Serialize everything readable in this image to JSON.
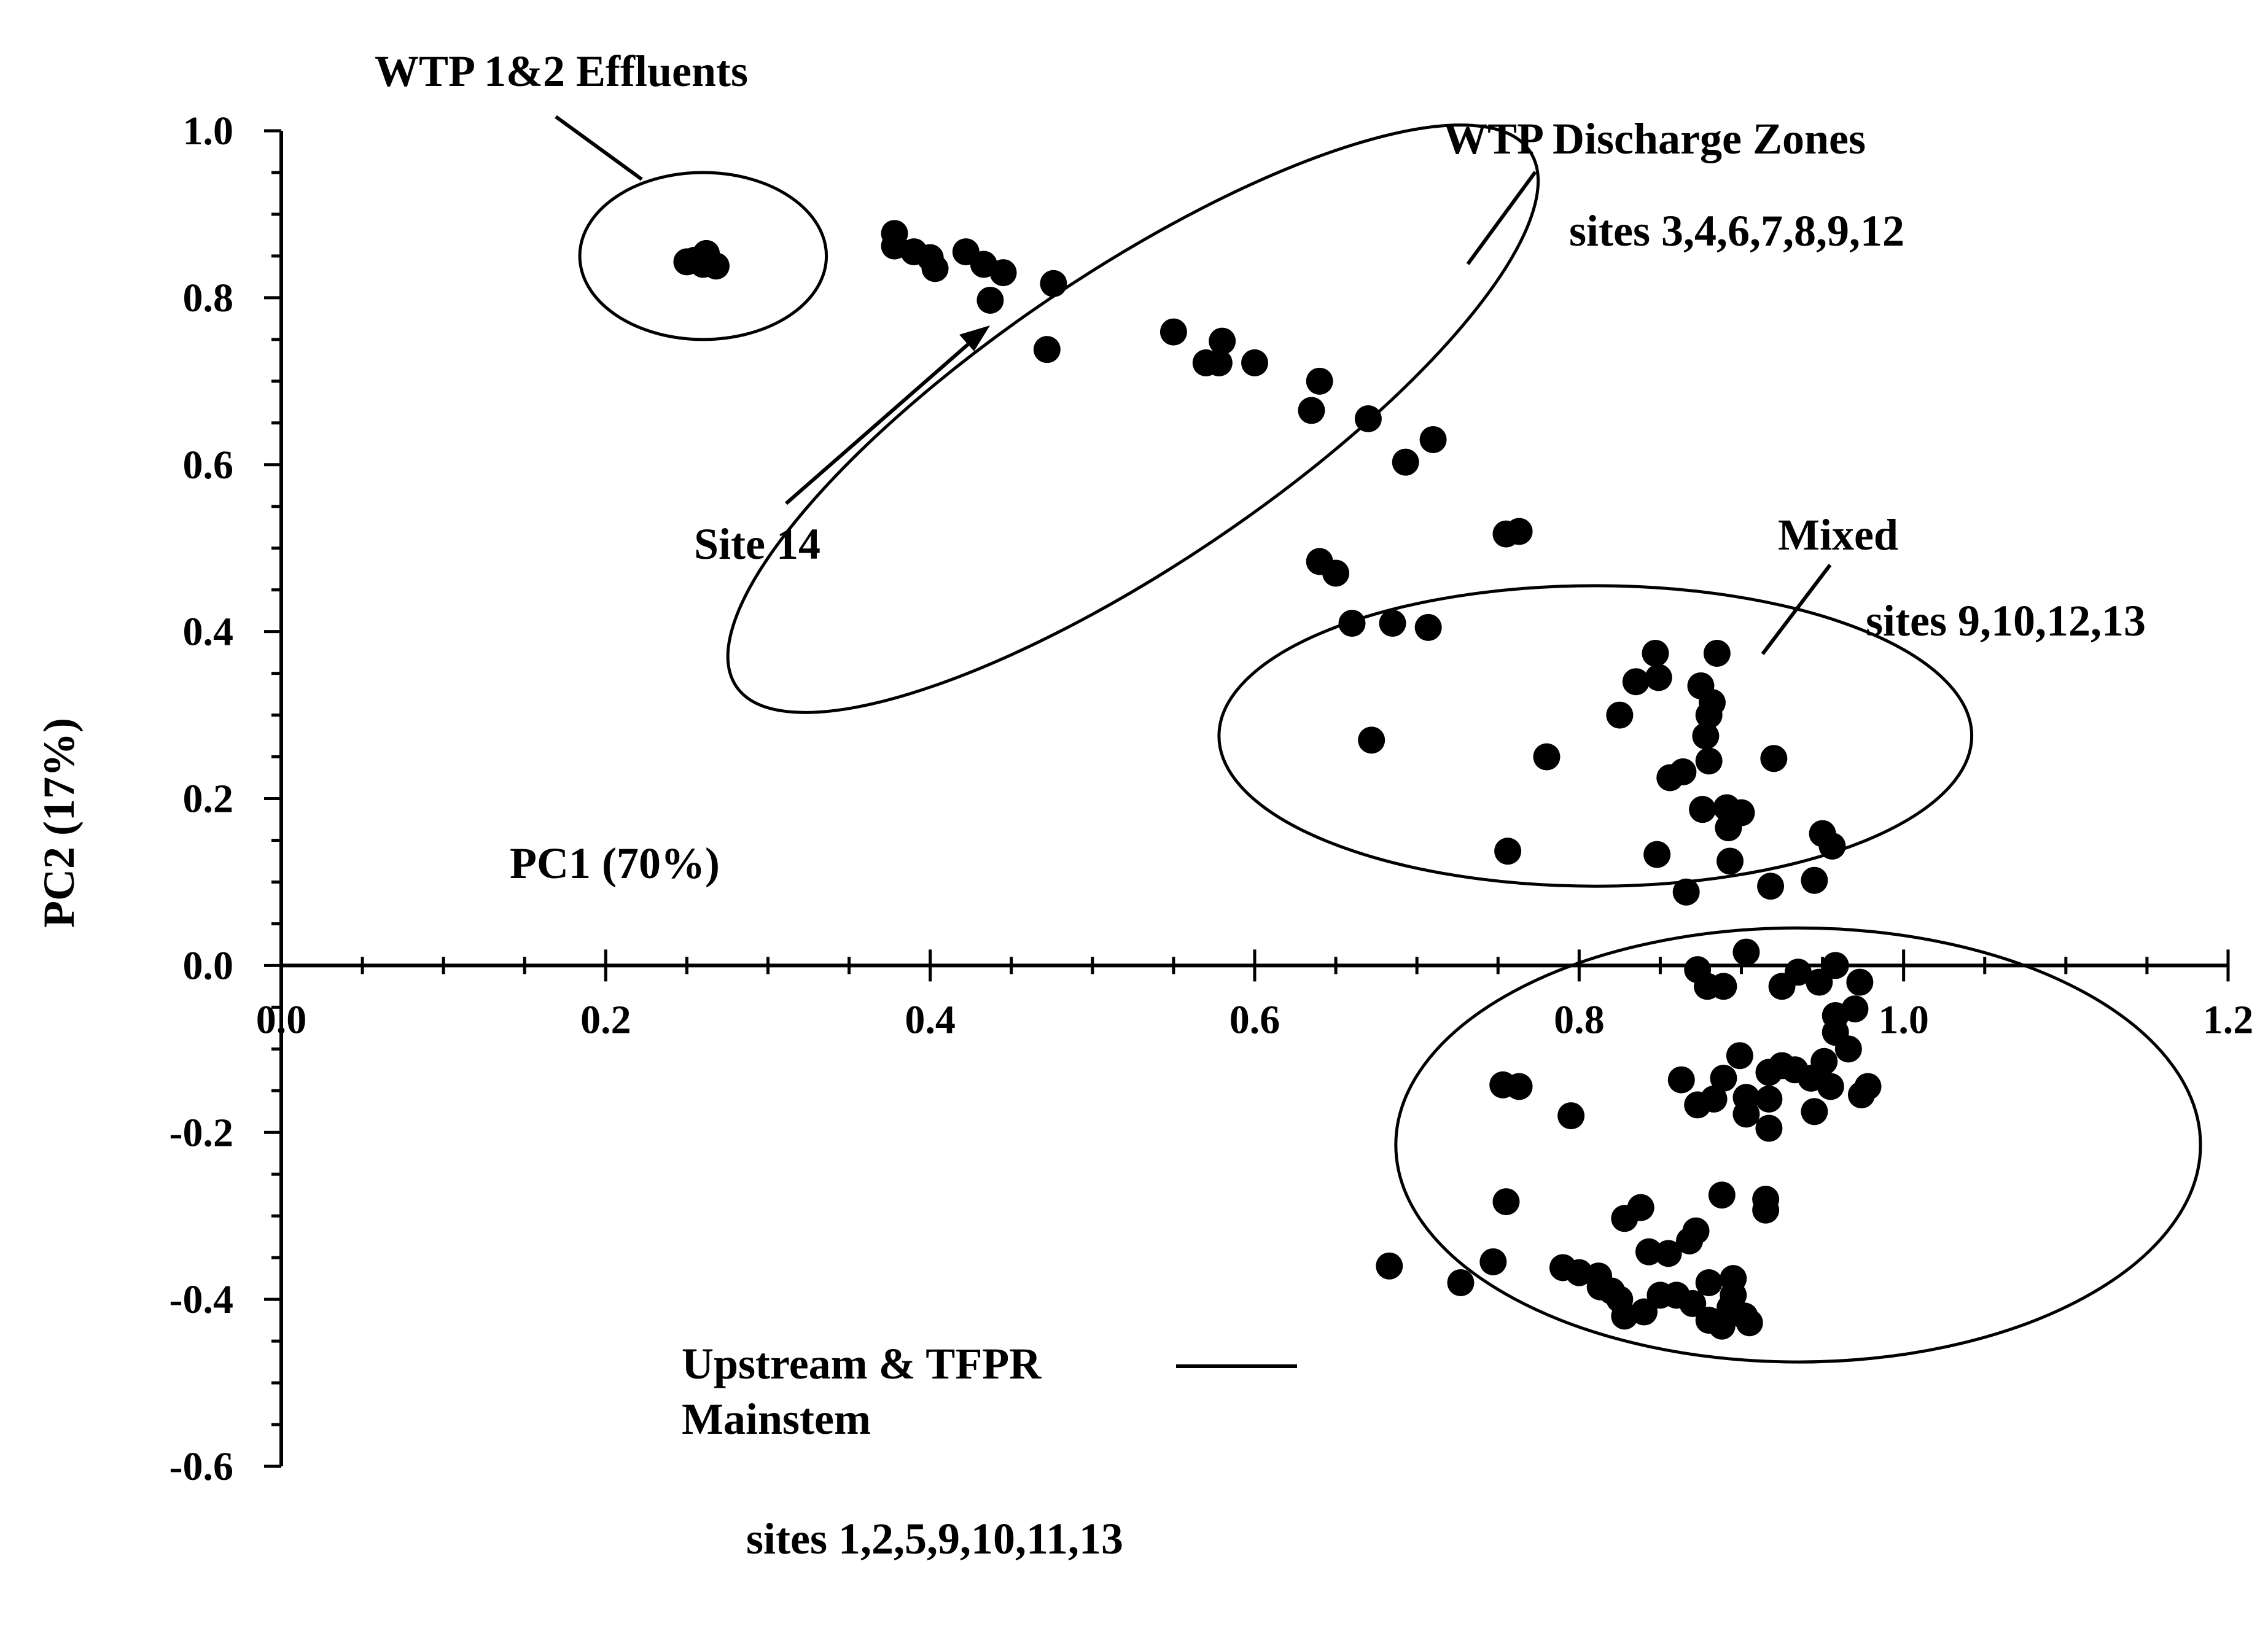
{
  "chart_data": {
    "type": "scatter",
    "title": "",
    "xlabel": "PC1 (70%)",
    "ylabel": "PC2 (17%)",
    "xlim": [
      0.0,
      1.2
    ],
    "ylim": [
      -0.6,
      1.0
    ],
    "x_ticks": [
      "0.0",
      "0.2",
      "0.4",
      "0.6",
      "0.8",
      "1.0",
      "1.2"
    ],
    "y_ticks": [
      "1.0",
      "0.8",
      "0.6",
      "0.4",
      "0.2",
      "0.0",
      "-0.2",
      "-0.4",
      "-0.6"
    ],
    "grid": false,
    "marker_color": "#000000",
    "groups": [
      {
        "name": "WTP 1&2 Effluents",
        "sites": "",
        "center": [
          0.26,
          0.85
        ],
        "radius_x": 0.076,
        "radius_y": 0.1,
        "angle": 0,
        "points": [
          [
            0.255,
            0.845
          ],
          [
            0.26,
            0.84
          ],
          [
            0.268,
            0.838
          ],
          [
            0.262,
            0.853
          ],
          [
            0.25,
            0.843
          ]
        ]
      },
      {
        "name": "WTP Discharge Zones",
        "sites": "sites 3,4,6,7,8,9,12",
        "center": [
          0.525,
          0.655
        ],
        "radius_x": 0.295,
        "radius_y": 0.175,
        "angle": -34,
        "points": [
          [
            0.378,
            0.877
          ],
          [
            0.378,
            0.862
          ],
          [
            0.39,
            0.855
          ],
          [
            0.4,
            0.848
          ],
          [
            0.403,
            0.835
          ],
          [
            0.422,
            0.855
          ],
          [
            0.433,
            0.84
          ],
          [
            0.445,
            0.83
          ],
          [
            0.476,
            0.817
          ],
          [
            0.437,
            0.797
          ],
          [
            0.472,
            0.738
          ],
          [
            0.55,
            0.759
          ],
          [
            0.58,
            0.748
          ],
          [
            0.57,
            0.722
          ],
          [
            0.578,
            0.722
          ],
          [
            0.6,
            0.722
          ],
          [
            0.64,
            0.7
          ],
          [
            0.635,
            0.665
          ],
          [
            0.67,
            0.655
          ],
          [
            0.71,
            0.63
          ],
          [
            0.693,
            0.603
          ],
          [
            0.755,
            0.517
          ],
          [
            0.763,
            0.52
          ],
          [
            0.64,
            0.484
          ],
          [
            0.65,
            0.47
          ]
        ]
      },
      {
        "name": "Mixed",
        "sites": "sites 9,10,12,13",
        "center": [
          0.81,
          0.275
        ],
        "radius_x": 0.232,
        "radius_y": 0.18,
        "angle": 0,
        "points": [
          [
            0.66,
            0.41
          ],
          [
            0.685,
            0.41
          ],
          [
            0.707,
            0.405
          ],
          [
            0.672,
            0.27
          ],
          [
            0.78,
            0.25
          ],
          [
            0.756,
            0.137
          ],
          [
            0.847,
            0.374
          ],
          [
            0.835,
            0.34
          ],
          [
            0.849,
            0.345
          ],
          [
            0.825,
            0.3
          ],
          [
            0.885,
            0.374
          ],
          [
            0.875,
            0.335
          ],
          [
            0.882,
            0.315
          ],
          [
            0.88,
            0.3
          ],
          [
            0.878,
            0.275
          ],
          [
            0.88,
            0.245
          ],
          [
            0.92,
            0.248
          ],
          [
            0.856,
            0.225
          ],
          [
            0.864,
            0.232
          ],
          [
            0.876,
            0.187
          ],
          [
            0.891,
            0.189
          ],
          [
            0.9,
            0.183
          ],
          [
            0.892,
            0.165
          ],
          [
            0.848,
            0.133
          ],
          [
            0.893,
            0.125
          ],
          [
            0.95,
            0.158
          ],
          [
            0.956,
            0.143
          ],
          [
            0.945,
            0.102
          ],
          [
            0.918,
            0.095
          ],
          [
            0.866,
            0.088
          ]
        ]
      },
      {
        "name": "Upstream & TFPR Mainstem",
        "sites": "sites 1,2,5,9,10,11,13",
        "center": [
          0.935,
          -0.215
        ],
        "radius_x": 0.248,
        "radius_y": 0.26,
        "angle": 0,
        "points": [
          [
            0.903,
            0.016
          ],
          [
            0.873,
            -0.005
          ],
          [
            0.879,
            -0.025
          ],
          [
            0.889,
            -0.025
          ],
          [
            0.935,
            -0.008
          ],
          [
            0.925,
            -0.025
          ],
          [
            0.958,
            0.0
          ],
          [
            0.948,
            -0.02
          ],
          [
            0.973,
            -0.02
          ],
          [
            0.753,
            -0.143
          ],
          [
            0.763,
            -0.145
          ],
          [
            0.795,
            -0.18
          ],
          [
            0.863,
            -0.137
          ],
          [
            0.873,
            -0.167
          ],
          [
            0.883,
            -0.16
          ],
          [
            0.899,
            -0.108
          ],
          [
            0.889,
            -0.135
          ],
          [
            0.903,
            -0.158
          ],
          [
            0.903,
            -0.178
          ],
          [
            0.917,
            -0.195
          ],
          [
            0.917,
            -0.16
          ],
          [
            0.917,
            -0.128
          ],
          [
            0.925,
            -0.12
          ],
          [
            0.933,
            -0.125
          ],
          [
            0.943,
            -0.135
          ],
          [
            0.951,
            -0.115
          ],
          [
            0.945,
            -0.175
          ],
          [
            0.955,
            -0.145
          ],
          [
            0.966,
            -0.1
          ],
          [
            0.958,
            -0.08
          ],
          [
            0.958,
            -0.06
          ],
          [
            0.97,
            -0.052
          ],
          [
            0.974,
            -0.155
          ],
          [
            0.978,
            -0.145
          ],
          [
            0.755,
            -0.283
          ],
          [
            0.747,
            -0.355
          ],
          [
            0.727,
            -0.38
          ],
          [
            0.683,
            -0.36
          ],
          [
            0.828,
            -0.303
          ],
          [
            0.838,
            -0.29
          ],
          [
            0.843,
            -0.343
          ],
          [
            0.855,
            -0.345
          ],
          [
            0.868,
            -0.33
          ],
          [
            0.872,
            -0.318
          ],
          [
            0.888,
            -0.275
          ],
          [
            0.915,
            -0.28
          ],
          [
            0.915,
            -0.293
          ],
          [
            0.79,
            -0.362
          ],
          [
            0.8,
            -0.368
          ],
          [
            0.812,
            -0.372
          ],
          [
            0.813,
            -0.385
          ],
          [
            0.82,
            -0.39
          ],
          [
            0.825,
            -0.4
          ],
          [
            0.828,
            -0.42
          ],
          [
            0.84,
            -0.415
          ],
          [
            0.85,
            -0.395
          ],
          [
            0.86,
            -0.395
          ],
          [
            0.87,
            -0.405
          ],
          [
            0.88,
            -0.425
          ],
          [
            0.888,
            -0.432
          ],
          [
            0.893,
            -0.41
          ],
          [
            0.895,
            -0.375
          ],
          [
            0.895,
            -0.395
          ],
          [
            0.902,
            -0.42
          ],
          [
            0.905,
            -0.428
          ],
          [
            0.88,
            -0.38
          ]
        ]
      }
    ],
    "annotations": [
      {
        "text": "WTP 1&2 Effluents"
      },
      {
        "text": "WTP Discharge Zones"
      },
      {
        "text": "sites 3,4,6,7,8,9,12"
      },
      {
        "text": "Site 14"
      },
      {
        "text": "Mixed"
      },
      {
        "text": "sites 9,10,12,13"
      },
      {
        "text": "Upstream & TFPR"
      },
      {
        "text": "Mainstem"
      },
      {
        "text": "sites 1,2,5,9,10,11,13"
      },
      {
        "text": "PC1 (70%)"
      },
      {
        "text": "PC2 (17%)"
      }
    ]
  }
}
